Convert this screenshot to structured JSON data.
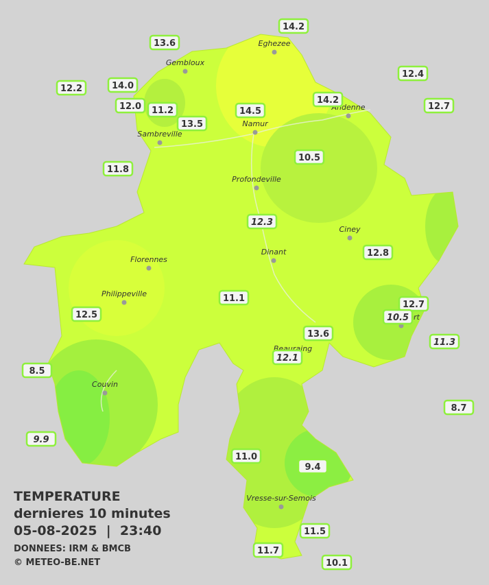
{
  "legend": {
    "title": "TEMPERATURE",
    "subtitle": "dernieres 10 minutes",
    "datetime": "05-08-2025  |  23:40",
    "source": "DONNEES: IRM & BMCB",
    "copyright": "© METEO-BE.NET"
  },
  "cities": [
    "Eghezee",
    "Gembloux",
    "Andenne",
    "Namur",
    "Sambreville",
    "Profondeville",
    "Ciney",
    "Dinant",
    "Florennes",
    "Philippeville",
    "Rochefort",
    "Beauraing",
    "Couvin",
    "Vresse-sur-Semois"
  ],
  "stations": [
    {
      "label": "14.2"
    },
    {
      "label": "13.6"
    },
    {
      "label": "12.4"
    },
    {
      "label": "12.2"
    },
    {
      "label": "14.0"
    },
    {
      "label": "12.0"
    },
    {
      "label": "11.2"
    },
    {
      "label": "14.5"
    },
    {
      "label": "14.2"
    },
    {
      "label": "12.7"
    },
    {
      "label": "13.5"
    },
    {
      "label": "10.5"
    },
    {
      "label": "11.8"
    },
    {
      "label": "12.3",
      "italic": true
    },
    {
      "label": "12.8"
    },
    {
      "label": "11.1"
    },
    {
      "label": "12.7"
    },
    {
      "label": "10.5",
      "italic": true
    },
    {
      "label": "12.5"
    },
    {
      "label": "13.6"
    },
    {
      "label": "11.3",
      "italic": true
    },
    {
      "label": "12.1",
      "italic": true
    },
    {
      "label": "8.5"
    },
    {
      "label": "8.7"
    },
    {
      "label": "9.9",
      "italic": true
    },
    {
      "label": "11.0"
    },
    {
      "label": "9.4"
    },
    {
      "label": "11.5"
    },
    {
      "label": "11.7"
    },
    {
      "label": "10.1"
    }
  ]
}
